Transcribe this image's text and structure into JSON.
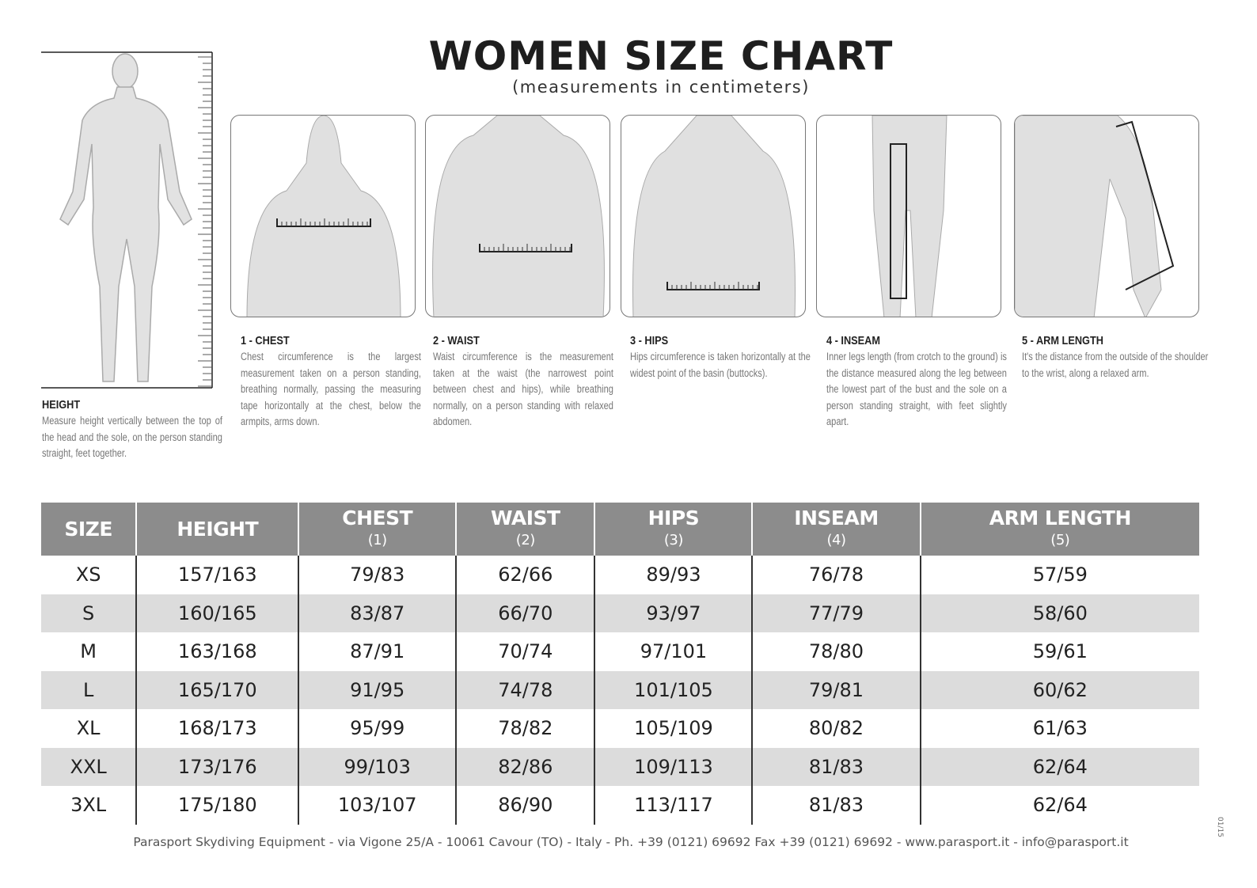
{
  "header": {
    "title": "WOMEN SIZE CHART",
    "subtitle": "(measurements in centimeters)"
  },
  "height_info": {
    "title": "HEIGHT",
    "text": "Measure height vertically between the top of the head and the sole, on the person standing straight, feet together."
  },
  "measures": [
    {
      "title": "1 - CHEST",
      "text": "Chest circumference is the largest measurement taken on a person standing, breathing normally, passing the measuring tape horizontally at the chest, below the armpits, arms down."
    },
    {
      "title": "2 - WAIST",
      "text": "Waist circumference is the measurement taken at the waist (the narrowest point between chest and hips), while breathing normally, on a person standing with relaxed abdomen."
    },
    {
      "title": "3 - HIPS",
      "text": "Hips circumference is taken horizontally at the widest point of the basin (buttocks)."
    },
    {
      "title": "4 - INSEAM",
      "text": "Inner legs length (from crotch to the ground) is the distance measured along the leg between the lowest part of the bust and the sole on a person standing straight, with feet slightly apart."
    },
    {
      "title": "5 - ARM LENGTH",
      "text": "It's the distance from the outside of the shoulder to the wrist, along a relaxed arm."
    }
  ],
  "table": {
    "headers": [
      {
        "label": "SIZE",
        "sub": ""
      },
      {
        "label": "HEIGHT",
        "sub": ""
      },
      {
        "label": "CHEST",
        "sub": "(1)"
      },
      {
        "label": "WAIST",
        "sub": "(2)"
      },
      {
        "label": "HIPS",
        "sub": "(3)"
      },
      {
        "label": "INSEAM",
        "sub": "(4)"
      },
      {
        "label": "ARM LENGTH",
        "sub": "(5)"
      }
    ],
    "rows": [
      [
        "XS",
        "157/163",
        "79/83",
        "62/66",
        "89/93",
        "76/78",
        "57/59"
      ],
      [
        "S",
        "160/165",
        "83/87",
        "66/70",
        "93/97",
        "77/79",
        "58/60"
      ],
      [
        "M",
        "163/168",
        "87/91",
        "70/74",
        "97/101",
        "78/80",
        "59/61"
      ],
      [
        "L",
        "165/170",
        "91/95",
        "74/78",
        "101/105",
        "79/81",
        "60/62"
      ],
      [
        "XL",
        "168/173",
        "95/99",
        "78/82",
        "105/109",
        "80/82",
        "61/63"
      ],
      [
        "XXL",
        "173/176",
        "99/103",
        "82/86",
        "109/113",
        "81/83",
        "62/64"
      ],
      [
        "3XL",
        "175/180",
        "103/107",
        "86/90",
        "113/117",
        "81/83",
        "62/64"
      ]
    ],
    "header_color": "#8c8c8c",
    "alt_row_color": "#dcdcdc"
  },
  "footer": "Parasport Skydiving Equipment - via Vigone 25/A - 10061 Cavour (TO) - Italy - Ph. +39 (0121) 69692 Fax +39 (0121) 69692 - www.parasport.it - info@parasport.it",
  "doc_code": "01/15"
}
